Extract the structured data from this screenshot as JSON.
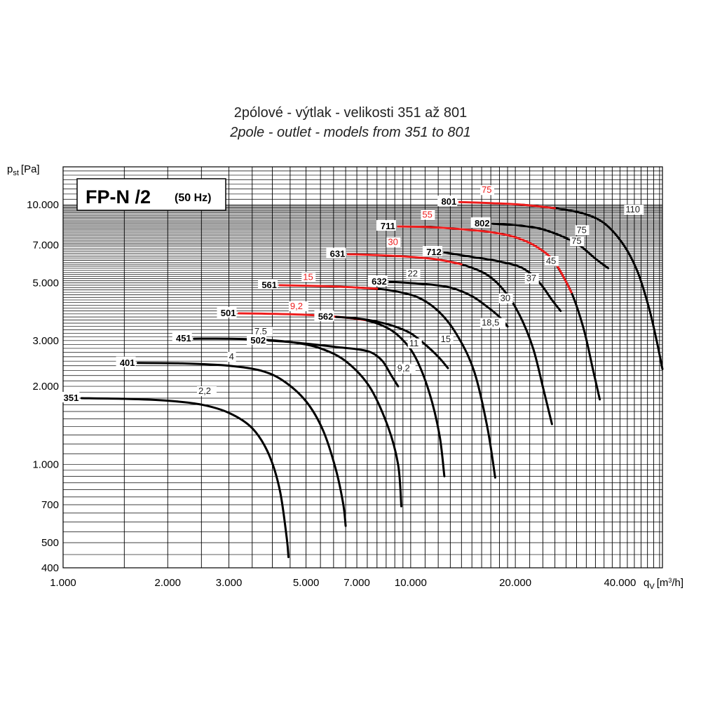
{
  "title": "2pólové - výtlak - velikosti 351 až 801",
  "subtitle": "2pole - outlet - models from 351 to 801",
  "chart_data": {
    "type": "line",
    "box_title": "FP-N /2",
    "box_subtitle": "(50 Hz)",
    "ylabel": "p",
    "ylabel_sub": "st",
    "ylabel_unit": "[Pa]",
    "xlabel": "q",
    "xlabel_sub": "V",
    "xlabel_unit": "[m",
    "xlabel_sup": "3",
    "xlabel_unit_end": "/h]",
    "xscale": "log",
    "yscale": "log",
    "xlim": [
      1000,
      53000
    ],
    "ylim": [
      400,
      14000
    ],
    "grid": true,
    "x_ticks": [
      {
        "v": 1000,
        "label": "1.000"
      },
      {
        "v": 2000,
        "label": "2.000"
      },
      {
        "v": 3000,
        "label": "3.000"
      },
      {
        "v": 5000,
        "label": "5.000"
      },
      {
        "v": 7000,
        "label": "7.000"
      },
      {
        "v": 10000,
        "label": "10.000"
      },
      {
        "v": 20000,
        "label": "20.000"
      },
      {
        "v": 40000,
        "label": "40.000"
      }
    ],
    "y_ticks": [
      {
        "v": 400,
        "label": "400"
      },
      {
        "v": 500,
        "label": "500"
      },
      {
        "v": 700,
        "label": "700"
      },
      {
        "v": 1000,
        "label": "1.000"
      },
      {
        "v": 2000,
        "label": "2.000"
      },
      {
        "v": 3000,
        "label": "3.000"
      },
      {
        "v": 5000,
        "label": "5.000"
      },
      {
        "v": 7000,
        "label": "7.000"
      },
      {
        "v": 10000,
        "label": "10.000"
      }
    ],
    "colors": {
      "standard": "#000000",
      "highlight": "#ee1c1c",
      "grid": "#000000"
    },
    "series": [
      {
        "name": "351",
        "color": "black",
        "points": [
          [
            1130,
            1800
          ],
          [
            1500,
            1790
          ],
          [
            2000,
            1760
          ],
          [
            2500,
            1700
          ],
          [
            3000,
            1580
          ],
          [
            3500,
            1380
          ],
          [
            3900,
            1100
          ],
          [
            4200,
            800
          ],
          [
            4400,
            520
          ],
          [
            4450,
            440
          ]
        ],
        "power": [
          "2,2"
        ],
        "power_at": [
          [
            2450,
            1800
          ]
        ]
      },
      {
        "name": "401",
        "color": "black",
        "points": [
          [
            1640,
            2460
          ],
          [
            2200,
            2450
          ],
          [
            3000,
            2400
          ],
          [
            3700,
            2300
          ],
          [
            4300,
            2100
          ],
          [
            5000,
            1750
          ],
          [
            5600,
            1350
          ],
          [
            6100,
            950
          ],
          [
            6400,
            700
          ],
          [
            6500,
            580
          ]
        ],
        "power": [
          "4"
        ],
        "power_at": [
          [
            3000,
            2440
          ]
        ]
      },
      {
        "name": "451",
        "color": "black",
        "points": [
          [
            2380,
            3050
          ],
          [
            3000,
            3050
          ],
          [
            3800,
            3020
          ],
          [
            4600,
            2950
          ],
          [
            5500,
            2800
          ],
          [
            6500,
            2500
          ],
          [
            7600,
            2000
          ],
          [
            8600,
            1400
          ],
          [
            9200,
            1000
          ],
          [
            9400,
            690
          ]
        ],
        "power": [
          "7,5"
        ],
        "power_at": [
          [
            3550,
            3050
          ]
        ]
      },
      {
        "name": "502",
        "color": "black",
        "points": [
          [
            3900,
            3000
          ],
          [
            4500,
            2960
          ],
          [
            5500,
            2880
          ],
          [
            6300,
            2820
          ],
          [
            7000,
            2780
          ],
          [
            7700,
            2700
          ],
          [
            8300,
            2500
          ],
          [
            8800,
            2200
          ],
          [
            9200,
            2000
          ]
        ],
        "power": [
          "9,2"
        ],
        "power_at": [
          [
            9150,
            2200
          ]
        ]
      },
      {
        "name": "501",
        "color": "red",
        "points": [
          [
            3200,
            3820
          ],
          [
            4100,
            3800
          ],
          [
            5200,
            3760
          ],
          [
            6500,
            3680
          ],
          [
            7400,
            3600
          ],
          [
            8400,
            3400
          ],
          [
            9300,
            3100
          ],
          [
            10300,
            2600
          ],
          [
            11300,
            1900
          ],
          [
            12100,
            1300
          ],
          [
            12500,
            900
          ]
        ],
        "power": [
          "9,2",
          "11"
        ],
        "power_at": [
          [
            4500,
            3820
          ],
          [
            9900,
            2750
          ]
        ],
        "red_until": 7300
      },
      {
        "name": "562",
        "color": "black",
        "points": [
          [
            6100,
            3700
          ],
          [
            7000,
            3650
          ],
          [
            8000,
            3550
          ],
          [
            9000,
            3400
          ],
          [
            10000,
            3200
          ],
          [
            11000,
            2900
          ],
          [
            12000,
            2600
          ],
          [
            12800,
            2350
          ]
        ],
        "power": [
          "15"
        ],
        "power_at": [
          [
            12200,
            2850
          ]
        ]
      },
      {
        "name": "561",
        "color": "red",
        "points": [
          [
            4200,
            4900
          ],
          [
            5000,
            4880
          ],
          [
            6000,
            4850
          ],
          [
            7000,
            4800
          ],
          [
            8000,
            4750
          ],
          [
            9000,
            4650
          ],
          [
            10500,
            4400
          ],
          [
            12000,
            3900
          ],
          [
            13500,
            3200
          ],
          [
            15200,
            2300
          ],
          [
            16600,
            1400
          ],
          [
            17500,
            890
          ]
        ],
        "power": [
          "15",
          "18,5"
        ],
        "power_at": [
          [
            4900,
            4950
          ],
          [
            16000,
            3300
          ]
        ],
        "red_until": 7200
      },
      {
        "name": "632",
        "color": "black",
        "points": [
          [
            8700,
            5050
          ],
          [
            11000,
            4950
          ],
          [
            13000,
            4800
          ],
          [
            15000,
            4450
          ],
          [
            16800,
            4000
          ],
          [
            18000,
            3700
          ],
          [
            19000,
            3400
          ]
        ],
        "power": [
          "22",
          "30"
        ],
        "power_at": [
          [
            9800,
            5100
          ],
          [
            18100,
            4100
          ]
        ],
        "red_until": 14200
      },
      {
        "name": "631",
        "color": "red",
        "points": [
          [
            6600,
            6450
          ],
          [
            8000,
            6400
          ],
          [
            10000,
            6300
          ],
          [
            12000,
            6150
          ],
          [
            14000,
            5900
          ],
          [
            16500,
            5400
          ],
          [
            18500,
            4700
          ],
          [
            20500,
            3800
          ],
          [
            22500,
            2800
          ],
          [
            24200,
            1900
          ],
          [
            25500,
            1430
          ]
        ],
        "power": [
          "30",
          "37"
        ],
        "power_at": [
          [
            8600,
            6750
          ],
          [
            21500,
            4900
          ]
        ],
        "red_until": 12800
      },
      {
        "name": "712",
        "color": "black",
        "points": [
          [
            12500,
            6550
          ],
          [
            15000,
            6300
          ],
          [
            18000,
            6050
          ],
          [
            21000,
            5700
          ],
          [
            23500,
            5000
          ],
          [
            25500,
            4300
          ],
          [
            27000,
            3900
          ]
        ],
        "power": [
          "45"
        ],
        "power_at": [
          [
            24500,
            5700
          ]
        ]
      },
      {
        "name": "711",
        "color": "red",
        "points": [
          [
            9200,
            8250
          ],
          [
            11500,
            8200
          ],
          [
            14000,
            8050
          ],
          [
            17000,
            7850
          ],
          [
            20000,
            7500
          ],
          [
            23000,
            6900
          ],
          [
            26000,
            6000
          ],
          [
            29000,
            4600
          ],
          [
            31500,
            3300
          ],
          [
            33500,
            2300
          ],
          [
            35000,
            1780
          ]
        ],
        "power": [
          "55",
          "75"
        ],
        "power_at": [
          [
            10800,
            8600
          ],
          [
            29000,
            6800
          ]
        ],
        "red_until": 26500
      },
      {
        "name": "802",
        "color": "black",
        "points": [
          [
            17200,
            8450
          ],
          [
            20000,
            8350
          ],
          [
            23500,
            8100
          ],
          [
            27000,
            7600
          ],
          [
            30500,
            7000
          ],
          [
            34000,
            6200
          ],
          [
            37000,
            5700
          ]
        ],
        "power": [
          "75"
        ],
        "power_at": [
          [
            30000,
            7500
          ]
        ]
      },
      {
        "name": "801",
        "color": "red",
        "points": [
          [
            13800,
            10250
          ],
          [
            17000,
            10150
          ],
          [
            21000,
            10000
          ],
          [
            26000,
            9700
          ],
          [
            31000,
            9300
          ],
          [
            36000,
            8500
          ],
          [
            41000,
            7000
          ],
          [
            45000,
            5500
          ],
          [
            48500,
            4000
          ],
          [
            51000,
            3000
          ],
          [
            53000,
            2330
          ]
        ],
        "power": [
          "75",
          "110"
        ],
        "power_at": [
          [
            16000,
            10700
          ],
          [
            41500,
            9000
          ]
        ],
        "red_until": 24500
      }
    ]
  }
}
